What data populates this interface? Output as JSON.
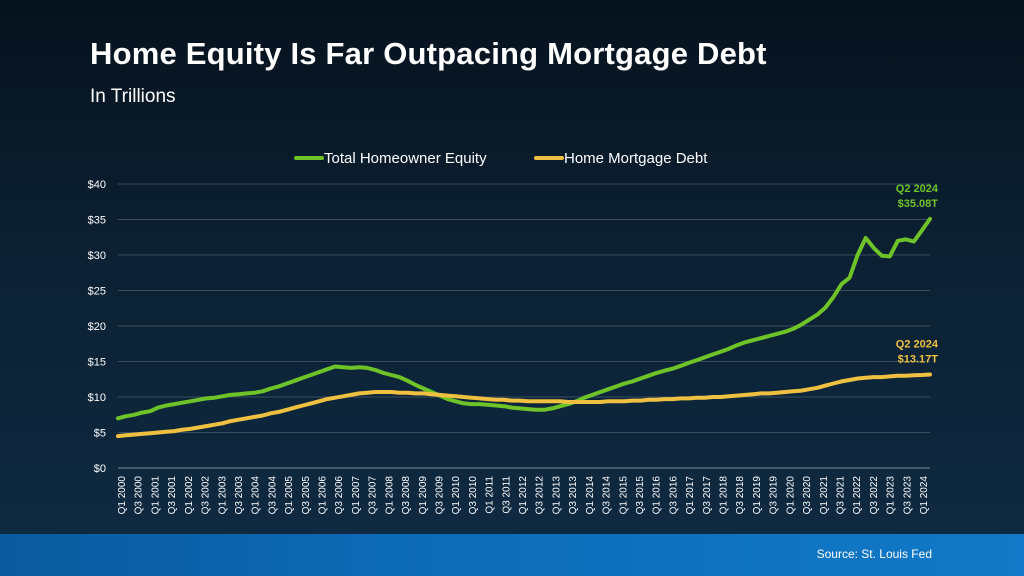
{
  "title": "Home Equity Is Far Outpacing Mortgage Debt",
  "subtitle": "In Trillions",
  "source": "Source: St. Louis Fed",
  "colors": {
    "equity": "#6ec328",
    "debt": "#f0c040",
    "grid": "#3a4c5e",
    "text": "#ffffff"
  },
  "chart_data": {
    "type": "line",
    "title": "",
    "xlabel": "",
    "ylabel": "",
    "ylim": [
      0,
      40
    ],
    "yticks": [
      0,
      5,
      10,
      15,
      20,
      25,
      30,
      35,
      40
    ],
    "ytick_labels": [
      "$0",
      "$5",
      "$10",
      "$15",
      "$20",
      "$25",
      "$30",
      "$35",
      "$40"
    ],
    "grid": "horizontal",
    "legend": "top-center",
    "x_labels": [
      "Q1 2000",
      "Q3 2000",
      "Q1 2001",
      "Q3 2001",
      "Q1 2002",
      "Q3 2002",
      "Q1 2003",
      "Q3 2003",
      "Q1 2004",
      "Q3 2004",
      "Q1 2005",
      "Q3 2005",
      "Q1 2006",
      "Q3 2006",
      "Q1 2007",
      "Q3 2007",
      "Q1 2008",
      "Q3 2008",
      "Q1 2009",
      "Q3 2009",
      "Q1 2010",
      "Q3 2010",
      "Q1 2011",
      "Q3 2011",
      "Q1 2012",
      "Q3 2012",
      "Q1 2013",
      "Q3 2013",
      "Q1 2014",
      "Q3 2014",
      "Q1 2015",
      "Q3 2015",
      "Q1 2016",
      "Q3 2016",
      "Q1 2017",
      "Q3 2017",
      "Q1 2018",
      "Q3 2018",
      "Q1 2019",
      "Q3 2019",
      "Q1 2020",
      "Q3 2020",
      "Q1 2021",
      "Q3 2021",
      "Q1 2022",
      "Q3 2022",
      "Q1 2023",
      "Q3 2023",
      "Q1 2024"
    ],
    "series": [
      {
        "name": "Total Homeowner Equity",
        "color": "#6ec328",
        "values": [
          7.0,
          7.3,
          7.5,
          7.8,
          8.0,
          8.5,
          8.8,
          9.0,
          9.2,
          9.4,
          9.6,
          9.8,
          9.9,
          10.1,
          10.3,
          10.4,
          10.5,
          10.6,
          10.8,
          11.2,
          11.5,
          11.9,
          12.3,
          12.7,
          13.1,
          13.5,
          13.9,
          14.3,
          14.2,
          14.1,
          14.2,
          14.1,
          13.8,
          13.4,
          13.1,
          12.8,
          12.3,
          11.7,
          11.2,
          10.7,
          10.2,
          9.7,
          9.4,
          9.1,
          9.0,
          9.0,
          8.9,
          8.8,
          8.7,
          8.5,
          8.4,
          8.3,
          8.2,
          8.2,
          8.4,
          8.7,
          9.0,
          9.4,
          9.9,
          10.3,
          10.7,
          11.1,
          11.5,
          11.9,
          12.2,
          12.6,
          13.0,
          13.4,
          13.7,
          14.0,
          14.4,
          14.8,
          15.2,
          15.6,
          16.0,
          16.4,
          16.8,
          17.3,
          17.7,
          18.0,
          18.3,
          18.6,
          18.9,
          19.2,
          19.6,
          20.2,
          20.9,
          21.6,
          22.6,
          24.1,
          25.9,
          26.8,
          30.0,
          32.4,
          31.0,
          29.9,
          29.8,
          32.0,
          32.2,
          31.9,
          33.5,
          35.08
        ]
      },
      {
        "name": "Home Mortgage Debt",
        "color": "#f0c040",
        "values": [
          4.5,
          4.6,
          4.7,
          4.8,
          4.9,
          5.0,
          5.1,
          5.2,
          5.4,
          5.5,
          5.7,
          5.9,
          6.1,
          6.3,
          6.6,
          6.8,
          7.0,
          7.2,
          7.4,
          7.7,
          7.9,
          8.2,
          8.5,
          8.8,
          9.1,
          9.4,
          9.7,
          9.9,
          10.1,
          10.3,
          10.5,
          10.6,
          10.7,
          10.7,
          10.7,
          10.6,
          10.6,
          10.5,
          10.5,
          10.4,
          10.3,
          10.2,
          10.1,
          10.0,
          9.9,
          9.8,
          9.7,
          9.6,
          9.6,
          9.5,
          9.5,
          9.4,
          9.4,
          9.4,
          9.4,
          9.4,
          9.3,
          9.3,
          9.3,
          9.3,
          9.3,
          9.4,
          9.4,
          9.4,
          9.5,
          9.5,
          9.6,
          9.6,
          9.7,
          9.7,
          9.8,
          9.8,
          9.9,
          9.9,
          10.0,
          10.0,
          10.1,
          10.2,
          10.3,
          10.4,
          10.5,
          10.5,
          10.6,
          10.7,
          10.8,
          10.9,
          11.1,
          11.3,
          11.6,
          11.9,
          12.2,
          12.4,
          12.6,
          12.7,
          12.8,
          12.8,
          12.9,
          13.0,
          13.0,
          13.05,
          13.1,
          13.17
        ]
      }
    ],
    "annotations": [
      {
        "series": "Total Homeowner Equity",
        "line1": "Q2 2024",
        "line2": "$35.08T"
      },
      {
        "series": "Home Mortgage Debt",
        "line1": "Q2 2024",
        "line2": "$13.17T"
      }
    ]
  }
}
